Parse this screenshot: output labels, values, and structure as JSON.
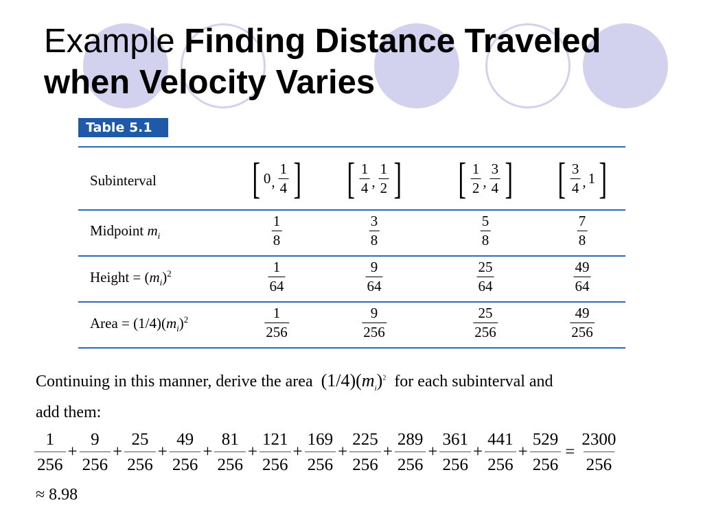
{
  "slide": {
    "title_prefix": "Example",
    "title_bold_line1": "Finding Distance Traveled",
    "title_bold_line2": "when Velocity Varies"
  },
  "table": {
    "label": "Table 5.1",
    "rows": {
      "subinterval": {
        "label": "Subinterval",
        "intervals": [
          {
            "left": "0",
            "right_num": "1",
            "right_den": "4"
          },
          {
            "left_num": "1",
            "left_den": "4",
            "right_num": "1",
            "right_den": "2"
          },
          {
            "left_num": "1",
            "left_den": "2",
            "right_num": "3",
            "right_den": "4"
          },
          {
            "left_num": "3",
            "left_den": "4",
            "right": "1"
          }
        ]
      },
      "midpoint": {
        "label_text": "Midpoint",
        "label_var": "m",
        "label_sub": "i",
        "values": [
          {
            "num": "1",
            "den": "8"
          },
          {
            "num": "3",
            "den": "8"
          },
          {
            "num": "5",
            "den": "8"
          },
          {
            "num": "7",
            "den": "8"
          }
        ]
      },
      "height": {
        "label_text": "Height = (",
        "label_var": "m",
        "label_sub": "i",
        "label_close": ")",
        "label_sup": "2",
        "values": [
          {
            "num": "1",
            "den": "64"
          },
          {
            "num": "9",
            "den": "64"
          },
          {
            "num": "25",
            "den": "64"
          },
          {
            "num": "49",
            "den": "64"
          }
        ]
      },
      "area": {
        "label_text": "Area = (1/4)(",
        "label_var": "m",
        "label_sub": "i",
        "label_close": ")",
        "label_sup": "2",
        "values": [
          {
            "num": "1",
            "den": "256"
          },
          {
            "num": "9",
            "den": "256"
          },
          {
            "num": "25",
            "den": "256"
          },
          {
            "num": "49",
            "den": "256"
          }
        ]
      }
    }
  },
  "body": {
    "text_before": "Continuing in this manner, derive the area",
    "formula_coef": "(1/4)(",
    "formula_var": "m",
    "formula_sub": "i",
    "formula_close": ")",
    "formula_sup": "2",
    "text_after": "for each subinterval and",
    "text_line2": "add them:",
    "sum_terms": [
      {
        "num": "1",
        "den": "256"
      },
      {
        "num": "9",
        "den": "256"
      },
      {
        "num": "25",
        "den": "256"
      },
      {
        "num": "49",
        "den": "256"
      },
      {
        "num": "81",
        "den": "256"
      },
      {
        "num": "121",
        "den": "256"
      },
      {
        "num": "169",
        "den": "256"
      },
      {
        "num": "225",
        "den": "256"
      },
      {
        "num": "289",
        "den": "256"
      },
      {
        "num": "361",
        "den": "256"
      },
      {
        "num": "441",
        "den": "256"
      },
      {
        "num": "529",
        "den": "256"
      }
    ],
    "plus_sign": "+",
    "equals_sign": "=",
    "sum_result": {
      "num": "2300",
      "den": "256"
    },
    "approx": "≈ 8.98"
  }
}
